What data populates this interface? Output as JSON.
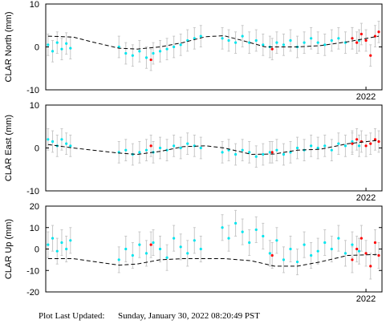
{
  "chart_data": [
    {
      "type": "scatter",
      "ylabel": "CLAR North (mm)",
      "xlim": [
        2015,
        2022.35
      ],
      "xticks": [
        2022
      ],
      "ylim": [
        -10,
        10
      ],
      "yticks": [
        -10,
        0,
        10
      ],
      "series": [
        {
          "mode": "markers",
          "color": "#00e5ee",
          "error": 2.5,
          "x": [
            2015.05,
            2015.15,
            2015.25,
            2015.35,
            2015.45,
            2015.54,
            2016.6,
            2016.75,
            2016.9,
            2017.05,
            2017.2,
            2017.35,
            2017.5,
            2017.65,
            2017.8,
            2017.95,
            2018.1,
            2018.25,
            2018.39,
            2018.86,
            2019.0,
            2019.15,
            2019.3,
            2019.45,
            2019.6,
            2019.75,
            2019.9,
            2020.05,
            2020.2,
            2020.35,
            2020.5,
            2020.65,
            2020.8,
            2020.95,
            2021.1,
            2021.25,
            2021.4,
            2021.55,
            2021.7,
            2021.85
          ],
          "values": [
            0.5,
            -1,
            1,
            -0.5,
            0.8,
            -0.3,
            0,
            -1.5,
            -2,
            -1,
            -2.5,
            -1.5,
            -1,
            -0.5,
            0,
            0.5,
            1.5,
            2,
            2.5,
            2,
            1.5,
            1,
            2.5,
            1,
            1.5,
            0.5,
            0,
            1,
            0.5,
            1.5,
            0,
            1,
            2,
            1,
            0.5,
            1.5,
            2,
            1,
            2,
            1.5
          ]
        },
        {
          "mode": "markers",
          "color": "#ff0000",
          "error": 2.5,
          "x": [
            2017.3,
            2019.95,
            2021.7,
            2021.8,
            2021.9,
            2022.0,
            2022.1,
            2022.2,
            2022.28
          ],
          "values": [
            -3,
            -0.5,
            2,
            1,
            3,
            1.5,
            -2,
            2.5,
            3.5
          ]
        },
        {
          "mode": "line",
          "line_style": "dashed",
          "color": "#000000",
          "x": [
            2015.05,
            2015.6,
            2016.0,
            2016.6,
            2017.0,
            2017.5,
            2018.0,
            2018.5,
            2018.9,
            2019.3,
            2019.8,
            2020.5,
            2021.0,
            2021.6,
            2022.28
          ],
          "values": [
            2.5,
            2.3,
            1.2,
            -0.3,
            -0.5,
            0,
            1,
            2.4,
            2.6,
            1.5,
            0,
            0,
            0.3,
            1.2,
            2.5
          ]
        }
      ]
    },
    {
      "type": "scatter",
      "ylabel": "CLAR East (mm)",
      "xlim": [
        2015,
        2022.35
      ],
      "xticks": [
        2022
      ],
      "ylim": [
        -10,
        10
      ],
      "yticks": [
        -10,
        0,
        10
      ],
      "series": [
        {
          "mode": "markers",
          "color": "#00e5ee",
          "error": 2.5,
          "x": [
            2015.05,
            2015.15,
            2015.25,
            2015.35,
            2015.45,
            2015.54,
            2016.6,
            2016.75,
            2016.9,
            2017.05,
            2017.2,
            2017.35,
            2017.5,
            2017.65,
            2017.8,
            2017.95,
            2018.1,
            2018.25,
            2018.39,
            2018.86,
            2019.0,
            2019.15,
            2019.3,
            2019.45,
            2019.6,
            2019.75,
            2019.9,
            2020.05,
            2020.2,
            2020.35,
            2020.5,
            2020.65,
            2020.8,
            2020.95,
            2021.1,
            2021.25,
            2021.4,
            2021.55,
            2021.7,
            2021.85
          ],
          "values": [
            2,
            1.5,
            0.5,
            2,
            1,
            0.5,
            -1,
            -0.5,
            -1.5,
            -1,
            -0.5,
            -1,
            0,
            -0.5,
            0.5,
            0,
            1,
            0.5,
            0,
            -1,
            -0.5,
            -1.5,
            -0.5,
            -1,
            -2,
            -1.5,
            -1,
            -0.5,
            -1.5,
            -1,
            0,
            -0.5,
            0.5,
            0,
            0.5,
            -0.5,
            1,
            0.5,
            1.5,
            0.5
          ]
        },
        {
          "mode": "markers",
          "color": "#ff0000",
          "error": 2.5,
          "x": [
            2017.3,
            2019.95,
            2021.7,
            2021.8,
            2021.9,
            2022.0,
            2022.1,
            2022.2,
            2022.28
          ],
          "values": [
            0.5,
            -1,
            1,
            2,
            1.5,
            0.5,
            1,
            2,
            1.5
          ]
        },
        {
          "mode": "line",
          "line_style": "dashed",
          "color": "#000000",
          "x": [
            2015.05,
            2015.6,
            2016.6,
            2017.0,
            2017.5,
            2018.0,
            2018.5,
            2018.9,
            2019.5,
            2020.0,
            2020.5,
            2021.0,
            2021.6,
            2022.28
          ],
          "values": [
            0.8,
            0,
            -1.2,
            -1.5,
            -0.8,
            0.3,
            0.5,
            0,
            -1.5,
            -1.4,
            -0.5,
            -0.3,
            1,
            1.8
          ]
        }
      ]
    },
    {
      "type": "scatter",
      "ylabel": "CLAR Up (mm)",
      "xlim": [
        2015,
        2022.35
      ],
      "xticks": [
        2022
      ],
      "ylim": [
        -20,
        20
      ],
      "yticks": [
        -20,
        -10,
        0,
        10,
        20
      ],
      "series": [
        {
          "mode": "markers",
          "color": "#00e5ee",
          "error": 6,
          "x": [
            2015.05,
            2015.15,
            2015.25,
            2015.35,
            2015.45,
            2015.54,
            2016.6,
            2016.75,
            2016.9,
            2017.05,
            2017.2,
            2017.35,
            2017.5,
            2017.65,
            2017.8,
            2017.95,
            2018.1,
            2018.25,
            2018.39,
            2018.86,
            2019.0,
            2019.15,
            2019.3,
            2019.45,
            2019.6,
            2019.75,
            2019.9,
            2020.05,
            2020.2,
            2020.35,
            2020.5,
            2020.65,
            2020.8,
            2020.95,
            2021.1,
            2021.25,
            2021.4,
            2021.55,
            2021.7,
            2021.85
          ],
          "values": [
            2,
            5,
            -1,
            3,
            0,
            4,
            -5,
            0,
            -3,
            2,
            -2,
            3,
            0,
            -4,
            5,
            1,
            -2,
            4,
            0,
            10,
            5,
            12,
            8,
            3,
            9,
            6,
            -2,
            4,
            -5,
            0,
            -6,
            2,
            -3,
            -1,
            3,
            0,
            5,
            -2,
            2,
            -1
          ]
        },
        {
          "mode": "markers",
          "color": "#ff0000",
          "error": 6,
          "x": [
            2017.3,
            2019.95,
            2021.7,
            2021.8,
            2021.9,
            2022.0,
            2022.1,
            2022.2,
            2022.28
          ],
          "values": [
            2,
            -3,
            -5,
            0,
            5,
            -2,
            -8,
            3,
            -3
          ]
        },
        {
          "mode": "line",
          "line_style": "dashed",
          "color": "#000000",
          "x": [
            2015.05,
            2015.6,
            2016.6,
            2017.0,
            2017.5,
            2018.0,
            2018.9,
            2019.5,
            2020.0,
            2020.5,
            2021.0,
            2021.6,
            2022.28
          ],
          "values": [
            -4.5,
            -4.5,
            -7.5,
            -7,
            -5,
            -4.5,
            -4.5,
            -5.5,
            -8,
            -8,
            -6,
            -3,
            -2.5
          ]
        }
      ]
    }
  ],
  "footer": {
    "label": "Plot Last Updated:",
    "timestamp": "Sunday, January 30, 2022 08:20:49 PST"
  }
}
